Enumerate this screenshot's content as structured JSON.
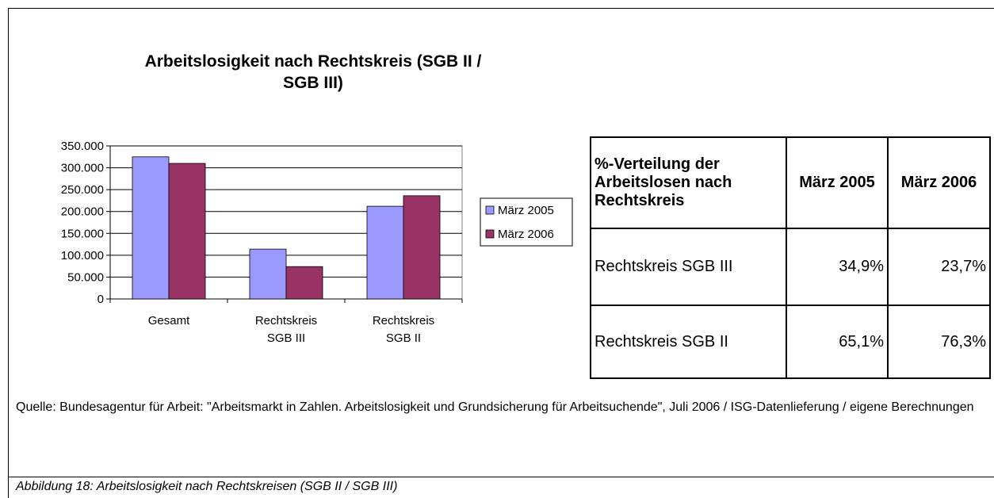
{
  "chart_data": {
    "type": "bar",
    "title": "Arbeitslosigkeit nach Rechtskreis (SGB II / SGB III)",
    "categories": [
      "Gesamt",
      "Rechtskreis SGB III",
      "Rechtskreis SGB II"
    ],
    "series": [
      {
        "name": "März 2005",
        "color": "#9999ff",
        "values": [
          325000,
          114000,
          212000
        ]
      },
      {
        "name": "März 2006",
        "color": "#993366",
        "values": [
          310000,
          74000,
          236000
        ]
      }
    ],
    "ylim": [
      0,
      350000
    ],
    "yticks": [
      0,
      {
        "value": 50000,
        "label": "50.000"
      },
      {
        "value": 100000,
        "label": "100.000"
      },
      {
        "value": 150000,
        "label": "150.000"
      },
      {
        "value": 200000,
        "label": "200.000"
      },
      {
        "value": 250000,
        "label": "250.000"
      },
      {
        "value": 300000,
        "label": "300.000"
      },
      {
        "value": 350000,
        "label": "350.000"
      }
    ],
    "grid": true,
    "legend": "right"
  },
  "table": {
    "header": [
      "%-Verteilung der Arbeitslosen nach Rechtskreis",
      "März 2005",
      "März 2006"
    ],
    "rows": [
      [
        "Rechtskreis SGB III",
        "34,9%",
        "23,7%"
      ],
      [
        "Rechtskreis SGB II",
        "65,1%",
        "76,3%"
      ]
    ]
  },
  "source": "Quelle: Bundesagentur für Arbeit: \"Arbeitsmarkt in Zahlen. Arbeitslosigkeit und Grundsicherung für Arbeitsuchende\", Juli 2006 / ISG-Datenlieferung / eigene Berechnungen",
  "caption": "Abbildung 18: Arbeitslosigkeit nach Rechtskreisen (SGB II / SGB III)"
}
